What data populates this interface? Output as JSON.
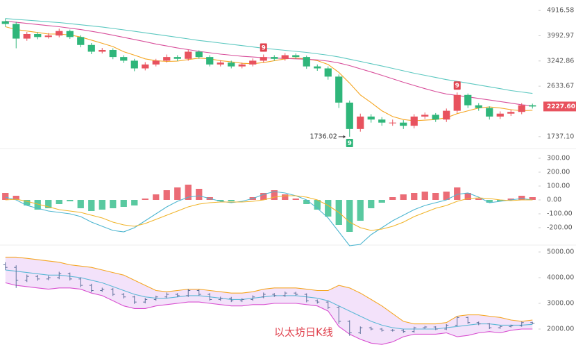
{
  "chart_data": [
    {
      "type": "candlestick",
      "log_scale": true,
      "ylim": [
        1611,
        5361
      ],
      "yticks": [
        4916.58,
        3992.97,
        3242.86,
        2633.67,
        {
          "value": 1737.1,
          "label": "1737.10"
        }
      ],
      "up_color": "#e8525e",
      "down_color": "#2fb67a",
      "open": [
        4500,
        4400,
        3900,
        4050,
        3950,
        4000,
        4150,
        3950,
        3700,
        3500,
        3550,
        3350,
        3250,
        3050,
        3150,
        3250,
        3350,
        3300,
        3500,
        3350,
        3150,
        3200,
        3100,
        3150,
        3250,
        3350,
        3300,
        3400,
        3350,
        3100,
        3050,
        2850,
        2300,
        1850,
        2050,
        2000,
        1950,
        1950,
        1900,
        2050,
        2080,
        2000,
        2150,
        2450,
        2250,
        2200,
        2050,
        2100,
        2130,
        2250
      ],
      "high": [
        4600,
        4480,
        4120,
        4110,
        4080,
        4230,
        4200,
        4010,
        3760,
        3610,
        3600,
        3400,
        3300,
        3210,
        3300,
        3420,
        3400,
        3560,
        3540,
        3400,
        3260,
        3250,
        3200,
        3310,
        3420,
        3400,
        3460,
        3450,
        3390,
        3150,
        3100,
        2900,
        2340,
        2100,
        2090,
        2040,
        2000,
        1990,
        2090,
        2120,
        2110,
        2190,
        2500,
        2480,
        2290,
        2230,
        2140,
        2170,
        2290,
        2280
      ],
      "low": [
        4300,
        3600,
        3830,
        3880,
        3900,
        3940,
        3890,
        3630,
        3430,
        3450,
        3290,
        3190,
        2980,
        3000,
        3100,
        3200,
        3240,
        3250,
        3300,
        3100,
        3100,
        3050,
        3050,
        3100,
        3200,
        3250,
        3250,
        3300,
        3040,
        2990,
        2780,
        2200,
        1736.02,
        1810,
        1950,
        1900,
        1900,
        1850,
        1860,
        2010,
        1960,
        1960,
        2110,
        2200,
        2150,
        2000,
        2010,
        2060,
        2090,
        2190
      ],
      "close": [
        4400,
        3900,
        4050,
        3950,
        4000,
        4150,
        3950,
        3700,
        3500,
        3550,
        3350,
        3250,
        3050,
        3150,
        3250,
        3350,
        3300,
        3500,
        3350,
        3150,
        3200,
        3100,
        3150,
        3250,
        3350,
        3300,
        3400,
        3350,
        3100,
        3050,
        2850,
        2300,
        1850,
        2050,
        2000,
        1950,
        1950,
        1900,
        2050,
        2080,
        2000,
        2150,
        2450,
        2250,
        2200,
        2050,
        2100,
        2130,
        2250,
        2227.6
      ],
      "series": [
        {
          "color": "#f5a623",
          "values": [
            4300,
            4200,
            4150,
            4100,
            4050,
            4050,
            4020,
            3950,
            3850,
            3750,
            3650,
            3500,
            3400,
            3300,
            3250,
            3230,
            3240,
            3280,
            3320,
            3300,
            3250,
            3220,
            3180,
            3170,
            3200,
            3250,
            3300,
            3320,
            3300,
            3250,
            3150,
            2950,
            2700,
            2450,
            2300,
            2150,
            2050,
            2000,
            1980,
            1990,
            2000,
            2030,
            2100,
            2150,
            2200,
            2220,
            2200,
            2170,
            2150,
            2160
          ]
        },
        {
          "color": "#d84f9b",
          "values": [
            4500,
            4460,
            4420,
            4380,
            4340,
            4300,
            4250,
            4200,
            4140,
            4080,
            4010,
            3940,
            3870,
            3800,
            3730,
            3670,
            3610,
            3560,
            3510,
            3470,
            3430,
            3400,
            3370,
            3350,
            3330,
            3320,
            3310,
            3300,
            3290,
            3270,
            3240,
            3190,
            3120,
            3040,
            2960,
            2880,
            2800,
            2720,
            2650,
            2580,
            2520,
            2470,
            2440,
            2410,
            2380,
            2350,
            2320,
            2290,
            2260,
            2240
          ]
        },
        {
          "color": "#5cc8c0",
          "values": [
            4600,
            4570,
            4540,
            4510,
            4480,
            4450,
            4410,
            4370,
            4330,
            4290,
            4240,
            4190,
            4140,
            4090,
            4040,
            3990,
            3940,
            3890,
            3840,
            3800,
            3760,
            3720,
            3680,
            3640,
            3600,
            3570,
            3540,
            3510,
            3480,
            3440,
            3400,
            3350,
            3290,
            3230,
            3170,
            3110,
            3050,
            2990,
            2930,
            2880,
            2830,
            2780,
            2740,
            2700,
            2660,
            2620,
            2580,
            2540,
            2510,
            2480
          ]
        }
      ],
      "last_close_label": "2227.60",
      "annotations": [
        {
          "text": "9",
          "at": 24,
          "position": "above",
          "color": "#e0434f"
        },
        {
          "text": "9",
          "at": 42,
          "position": "above",
          "color": "#e0434f"
        },
        {
          "text": "9",
          "at": 32,
          "position": "below",
          "color": "#2fb67a"
        }
      ]
    },
    {
      "type": "macd",
      "ylim": [
        -310,
        350
      ],
      "yticks": [
        {
          "value": 300,
          "label": "300.00"
        },
        {
          "value": 200,
          "label": "200.00"
        },
        {
          "value": 100,
          "label": "100.00"
        },
        {
          "value": 0,
          "label": "0.00"
        },
        {
          "value": -100,
          "label": "-100.00"
        },
        {
          "value": -200,
          "label": "-200.00"
        }
      ],
      "histogram": {
        "up_color": "#e8525e",
        "down_color": "#3cbf8f",
        "values": [
          50,
          30,
          -40,
          -70,
          -60,
          -30,
          -10,
          -60,
          -80,
          -70,
          -60,
          -50,
          -40,
          10,
          40,
          70,
          90,
          110,
          80,
          20,
          -10,
          -10,
          0,
          20,
          50,
          70,
          40,
          10,
          -30,
          -70,
          -120,
          -180,
          -230,
          -150,
          -60,
          -20,
          20,
          40,
          50,
          60,
          50,
          60,
          90,
          50,
          10,
          -20,
          -10,
          10,
          30,
          20
        ]
      },
      "series": [
        {
          "color": "#4db6d0",
          "values": [
            20,
            0,
            -40,
            -60,
            -80,
            -90,
            -100,
            -120,
            -160,
            -190,
            -220,
            -230,
            -200,
            -150,
            -100,
            -50,
            -10,
            20,
            30,
            10,
            -10,
            -20,
            -10,
            10,
            40,
            60,
            50,
            30,
            0,
            -60,
            -130,
            -230,
            -330,
            -320,
            -250,
            -200,
            -150,
            -110,
            -70,
            -40,
            -20,
            0,
            40,
            50,
            20,
            -20,
            -10,
            0,
            10,
            0
          ]
        },
        {
          "color": "#f0b429",
          "values": [
            0,
            5,
            -10,
            -30,
            -50,
            -70,
            -80,
            -90,
            -110,
            -130,
            -160,
            -180,
            -190,
            -170,
            -140,
            -110,
            -80,
            -50,
            -30,
            -20,
            -15,
            -15,
            -15,
            -10,
            0,
            20,
            30,
            30,
            20,
            0,
            -40,
            -90,
            -160,
            -200,
            -220,
            -210,
            -190,
            -160,
            -120,
            -90,
            -60,
            -40,
            -10,
            10,
            15,
            10,
            0,
            -5,
            0,
            0
          ]
        }
      ]
    },
    {
      "type": "bollinger",
      "ylim": [
        1378,
        5216
      ],
      "yticks": [
        {
          "value": 5000,
          "label": "5000.00"
        },
        {
          "value": 4000,
          "label": "4000.00"
        },
        {
          "value": 3000,
          "label": "3000.00"
        },
        {
          "value": 2000,
          "label": "2000.00"
        }
      ],
      "bar_color": "#5a6e9a",
      "band_fill": "#f3e2fa",
      "series": [
        {
          "color": "#f5a623",
          "values": [
            4800,
            4800,
            4750,
            4700,
            4650,
            4600,
            4500,
            4450,
            4400,
            4300,
            4200,
            4100,
            3900,
            3700,
            3500,
            3450,
            3500,
            3550,
            3550,
            3500,
            3450,
            3400,
            3400,
            3450,
            3550,
            3600,
            3600,
            3600,
            3550,
            3500,
            3500,
            3700,
            3600,
            3400,
            3150,
            2900,
            2600,
            2300,
            2200,
            2200,
            2200,
            2250,
            2500,
            2550,
            2550,
            2500,
            2450,
            2350,
            2300,
            2350
          ]
        },
        {
          "color": "#5bb8d6",
          "values": [
            4300,
            4250,
            4200,
            4150,
            4100,
            4100,
            4050,
            4000,
            3900,
            3800,
            3650,
            3500,
            3350,
            3250,
            3200,
            3200,
            3250,
            3300,
            3300,
            3250,
            3200,
            3150,
            3150,
            3200,
            3250,
            3300,
            3300,
            3300,
            3250,
            3200,
            3100,
            2900,
            2700,
            2500,
            2300,
            2150,
            2050,
            2000,
            2000,
            2000,
            2000,
            2050,
            2100,
            2150,
            2200,
            2200,
            2150,
            2150,
            2150,
            2180
          ]
        },
        {
          "color": "#d84fd0",
          "values": [
            3800,
            3700,
            3650,
            3600,
            3550,
            3600,
            3600,
            3550,
            3400,
            3300,
            3100,
            2900,
            2800,
            2800,
            2900,
            2950,
            3000,
            3050,
            3050,
            3000,
            2950,
            2900,
            2900,
            2950,
            2950,
            3000,
            3000,
            3000,
            2950,
            2900,
            2700,
            2100,
            1800,
            1600,
            1450,
            1400,
            1500,
            1700,
            1800,
            1800,
            1800,
            1850,
            1700,
            1750,
            1850,
            1900,
            1850,
            1950,
            2000,
            2000
          ]
        }
      ],
      "annotation": "以太坊日K线"
    }
  ]
}
